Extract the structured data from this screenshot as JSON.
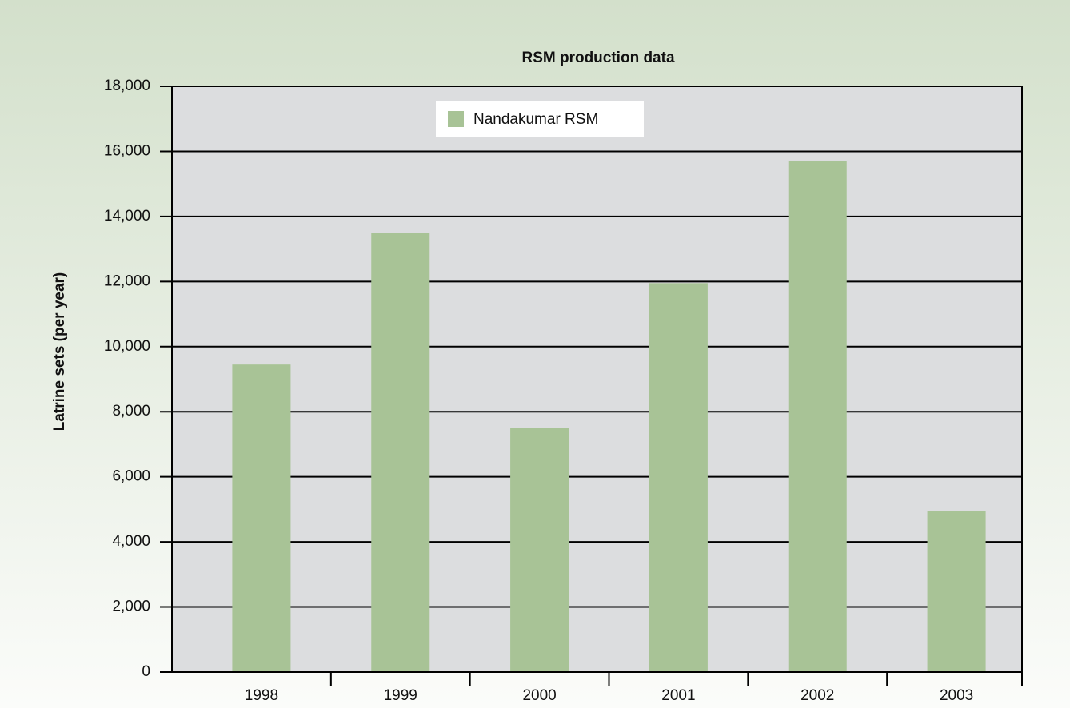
{
  "chart_data": {
    "type": "bar",
    "title": "RSM production data",
    "y_label": "Latrine sets (per year)",
    "categories": [
      "1998",
      "1999",
      "2000",
      "2001",
      "2002",
      "2003"
    ],
    "series": [
      {
        "name": "Nandakumar RSM",
        "color": "#a8c396",
        "values": [
          9450,
          13500,
          7500,
          11950,
          15700,
          4950
        ]
      }
    ],
    "ylim": [
      0,
      18000
    ],
    "yticks": [
      0,
      {
        "value": 2000,
        "label": "2,000"
      },
      {
        "value": 4000,
        "label": "4,000"
      },
      {
        "value": 6000,
        "label": "6,000"
      },
      {
        "value": 8000,
        "label": "8,000"
      },
      {
        "value": 10000,
        "label": "10,000"
      },
      {
        "value": 12000,
        "label": "12,000"
      },
      {
        "value": 14000,
        "label": "14,000"
      },
      {
        "value": 16000,
        "label": "16,000"
      },
      {
        "value": 18000,
        "label": "18,000"
      }
    ],
    "grid": true,
    "legend": "top"
  }
}
